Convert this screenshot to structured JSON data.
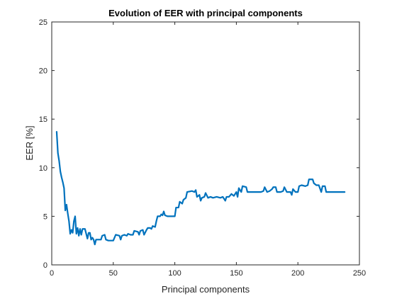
{
  "chart_data": {
    "type": "line",
    "title": "Evolution of EER with principal components",
    "xlabel": "Principal components",
    "ylabel": "EER [%]",
    "xlim": [
      0,
      250
    ],
    "ylim": [
      0,
      25
    ],
    "xticks": [
      "0",
      "50",
      "100",
      "150",
      "200",
      "250"
    ],
    "yticks": [
      "0",
      "5",
      "10",
      "15",
      "20",
      "25"
    ],
    "grid": false,
    "series": [
      {
        "color": "#0072BD",
        "points": [
          [
            4,
            13.7
          ],
          [
            5,
            11.5
          ],
          [
            6,
            10.7
          ],
          [
            7,
            9.6
          ],
          [
            8,
            9.0
          ],
          [
            9,
            8.5
          ],
          [
            10,
            7.9
          ],
          [
            11,
            5.6
          ],
          [
            12,
            6.2
          ],
          [
            13,
            5.3
          ],
          [
            14,
            4.5
          ],
          [
            15,
            3.2
          ],
          [
            16,
            3.6
          ],
          [
            17,
            3.3
          ],
          [
            18,
            4.5
          ],
          [
            19,
            5.0
          ],
          [
            20,
            3.2
          ],
          [
            21,
            3.8
          ],
          [
            22,
            3.0
          ],
          [
            23,
            3.7
          ],
          [
            24,
            3.1
          ],
          [
            25,
            3.7
          ],
          [
            26,
            3.7
          ],
          [
            27,
            3.7
          ],
          [
            28,
            3.2
          ],
          [
            29,
            2.7
          ],
          [
            30,
            3.3
          ],
          [
            31,
            3.3
          ],
          [
            32,
            2.6
          ],
          [
            33,
            2.8
          ],
          [
            34,
            2.6
          ],
          [
            35,
            2.1
          ],
          [
            36,
            2.6
          ],
          [
            38,
            2.6
          ],
          [
            40,
            2.6
          ],
          [
            41,
            3.0
          ],
          [
            43,
            3.1
          ],
          [
            44,
            2.6
          ],
          [
            46,
            2.5
          ],
          [
            50,
            2.5
          ],
          [
            52,
            3.1
          ],
          [
            55,
            3.0
          ],
          [
            56,
            2.6
          ],
          [
            57,
            3.0
          ],
          [
            59,
            3.1
          ],
          [
            61,
            3.0
          ],
          [
            62,
            3.2
          ],
          [
            64,
            3.1
          ],
          [
            66,
            3.1
          ],
          [
            67,
            3.5
          ],
          [
            70,
            3.4
          ],
          [
            71,
            3.1
          ],
          [
            72,
            3.5
          ],
          [
            74,
            3.6
          ],
          [
            75,
            3.1
          ],
          [
            77,
            3.6
          ],
          [
            78,
            3.8
          ],
          [
            80,
            3.8
          ],
          [
            81,
            3.7
          ],
          [
            82,
            4.0
          ],
          [
            84,
            3.9
          ],
          [
            85,
            4.5
          ],
          [
            86,
            5.0
          ],
          [
            88,
            5.0
          ],
          [
            89,
            5.2
          ],
          [
            90,
            5.1
          ],
          [
            91,
            5.5
          ],
          [
            92,
            5.1
          ],
          [
            94,
            5.0
          ],
          [
            100,
            5.0
          ],
          [
            101,
            5.9
          ],
          [
            103,
            5.9
          ],
          [
            104,
            6.5
          ],
          [
            106,
            6.3
          ],
          [
            107,
            6.7
          ],
          [
            109,
            6.9
          ],
          [
            110,
            7.5
          ],
          [
            114,
            7.6
          ],
          [
            116,
            7.5
          ],
          [
            117,
            7.7
          ],
          [
            118,
            7.0
          ],
          [
            120,
            7.2
          ],
          [
            121,
            6.6
          ],
          [
            122,
            6.9
          ],
          [
            124,
            7.0
          ],
          [
            125,
            7.4
          ],
          [
            127,
            6.9
          ],
          [
            129,
            7.0
          ],
          [
            131,
            6.9
          ],
          [
            134,
            7.0
          ],
          [
            137,
            6.9
          ],
          [
            139,
            7.0
          ],
          [
            141,
            6.6
          ],
          [
            142,
            7.0
          ],
          [
            144,
            7.0
          ],
          [
            146,
            7.3
          ],
          [
            148,
            7.1
          ],
          [
            150,
            7.5
          ],
          [
            151,
            7.0
          ],
          [
            152,
            7.9
          ],
          [
            154,
            7.5
          ],
          [
            155,
            8.1
          ],
          [
            158,
            8.0
          ],
          [
            159,
            7.5
          ],
          [
            163,
            7.5
          ],
          [
            165,
            7.5
          ],
          [
            170,
            7.5
          ],
          [
            172,
            7.6
          ],
          [
            173,
            8.0
          ],
          [
            175,
            7.5
          ],
          [
            177,
            7.6
          ],
          [
            179,
            7.8
          ],
          [
            180,
            8.0
          ],
          [
            182,
            8.0
          ],
          [
            183,
            7.5
          ],
          [
            186,
            7.5
          ],
          [
            188,
            7.6
          ],
          [
            189,
            8.0
          ],
          [
            191,
            7.5
          ],
          [
            194,
            7.5
          ],
          [
            195,
            7.2
          ],
          [
            196,
            7.8
          ],
          [
            198,
            7.5
          ],
          [
            200,
            7.5
          ],
          [
            201,
            8.1
          ],
          [
            203,
            8.2
          ],
          [
            206,
            8.1
          ],
          [
            208,
            8.2
          ],
          [
            209,
            8.8
          ],
          [
            212,
            8.8
          ],
          [
            213,
            8.4
          ],
          [
            215,
            8.2
          ],
          [
            217,
            8.2
          ],
          [
            219,
            7.5
          ],
          [
            220,
            8.1
          ],
          [
            222,
            8.1
          ],
          [
            223,
            7.5
          ],
          [
            225,
            7.5
          ],
          [
            238,
            7.5
          ]
        ]
      }
    ]
  }
}
